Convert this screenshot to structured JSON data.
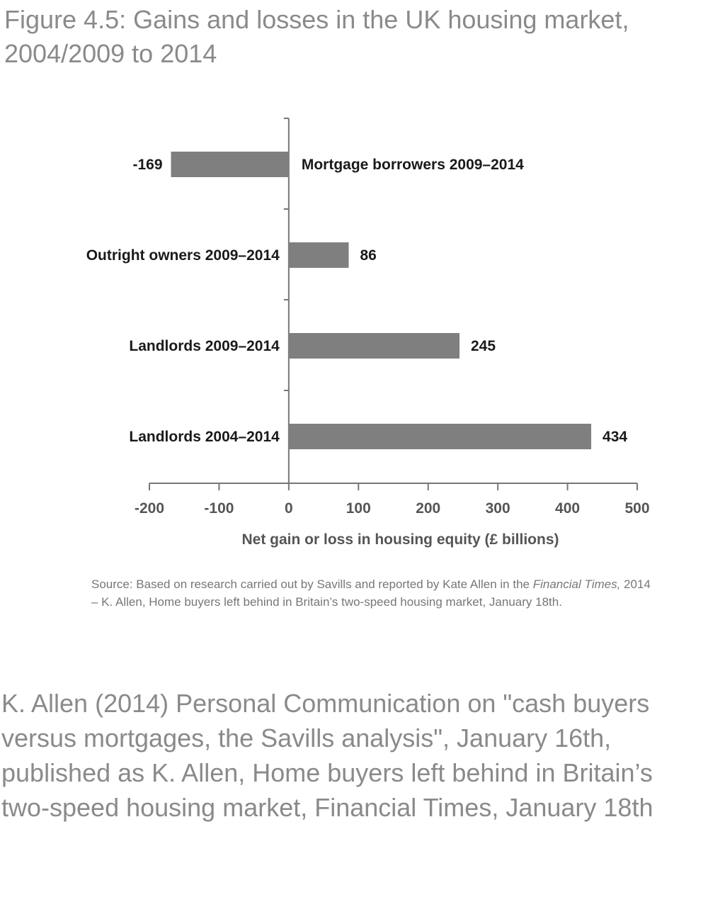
{
  "figure": {
    "title": "Figure 4.5: Gains and losses in the UK housing market, 2004/2009 to 2014"
  },
  "chart_data": {
    "type": "bar",
    "orientation": "horizontal",
    "categories": [
      "Mortgage borrowers 2009–2014",
      "Outright owners 2009–2014",
      "Landlords 2009–2014",
      "Landlords 2004–2014"
    ],
    "values": [
      -169,
      86,
      245,
      434
    ],
    "data_labels": [
      "-169",
      "86",
      "245",
      "434"
    ],
    "xlabel": "Net gain or loss in housing equity (£ billions)",
    "xlim": [
      -200,
      500
    ],
    "xticks": [
      -200,
      -100,
      0,
      100,
      200,
      300,
      400,
      500
    ],
    "tick_labels": [
      "-200",
      "-100",
      "0",
      "100",
      "200",
      "300",
      "400",
      "500"
    ],
    "bar_color": "#7f7f7f",
    "grid": false,
    "legend": "none"
  },
  "source": {
    "prefix": "Source: Based on research carried out by Savills and reported by Kate Allen in the ",
    "publication": "Financial Times,",
    "suffix": " 2014 – K. Allen,  Home buyers left behind in Britain’s two-speed housing market, January 18th."
  },
  "reference": {
    "text": "K. Allen (2014) Personal Communication on \"cash buyers versus mortgages, the Savills analysis\", January 16th, published as K. Allen,  Home buyers left behind in Britain’s two-speed housing market, Financial Times, January 18th"
  }
}
